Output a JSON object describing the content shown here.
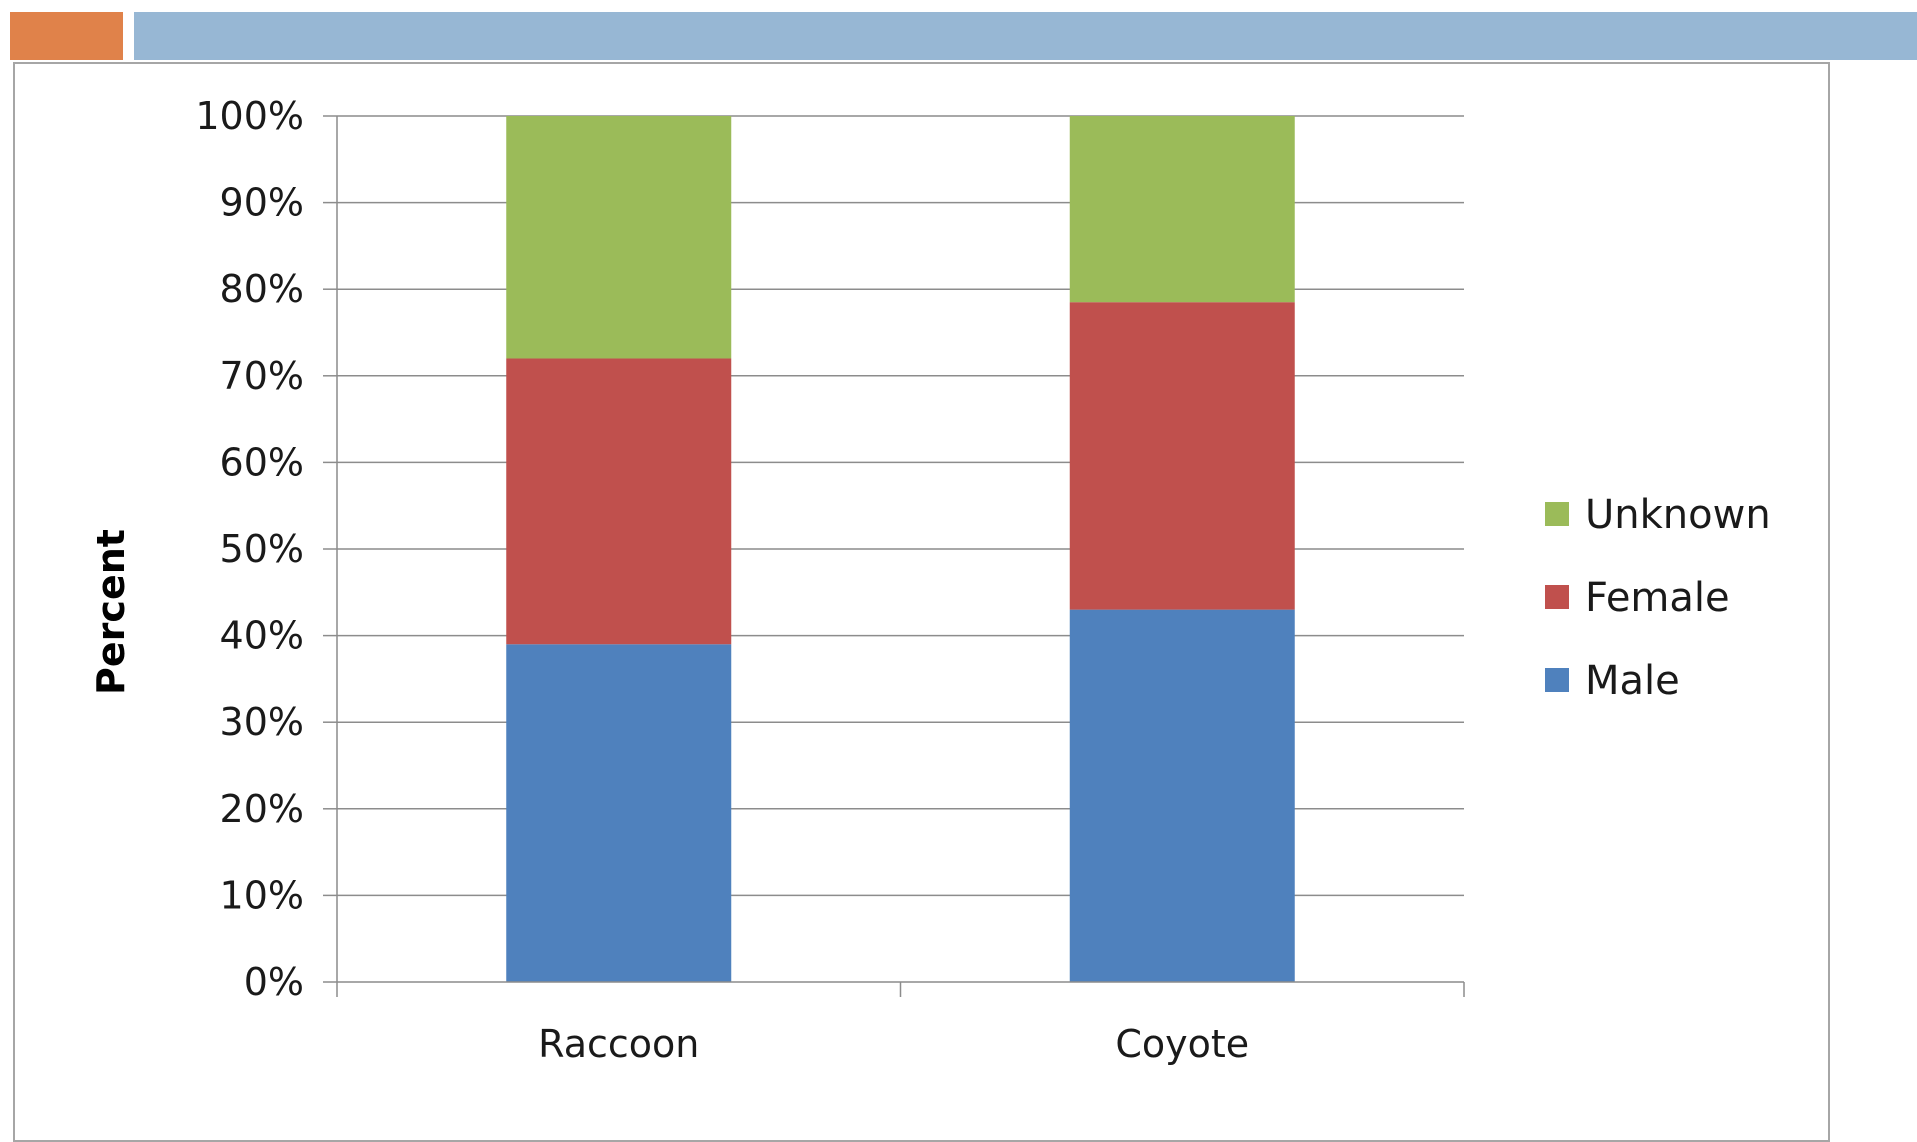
{
  "header": {
    "accent_color": "#E0824A",
    "bar_color": "#97B7D4"
  },
  "chart_data": {
    "type": "bar",
    "stacked": true,
    "percent_stacked": true,
    "categories": [
      "Raccoon",
      "Coyote"
    ],
    "series": [
      {
        "name": "Male",
        "values": [
          39,
          43
        ],
        "color": "#4F81BD"
      },
      {
        "name": "Female",
        "values": [
          33,
          35.5
        ],
        "color": "#C0504D"
      },
      {
        "name": "Unknown",
        "values": [
          28,
          21.5
        ],
        "color": "#9BBB59"
      }
    ],
    "ylabel": "Percent",
    "ylim": [
      0,
      100
    ],
    "yticks": [
      "0%",
      "10%",
      "20%",
      "30%",
      "40%",
      "50%",
      "60%",
      "70%",
      "80%",
      "90%",
      "100%"
    ],
    "grid": true,
    "legend_position": "right"
  }
}
